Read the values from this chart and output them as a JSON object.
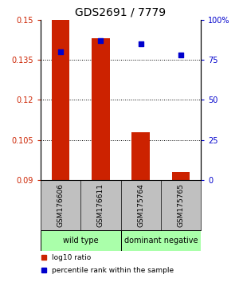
{
  "title": "GDS2691 / 7779",
  "samples": [
    "GSM176606",
    "GSM176611",
    "GSM175764",
    "GSM175765"
  ],
  "log10_ratio": [
    0.15,
    0.143,
    0.108,
    0.093
  ],
  "percentile_rank": [
    80,
    87,
    85,
    78
  ],
  "ylim_left": [
    0.09,
    0.15
  ],
  "ylim_right": [
    0,
    100
  ],
  "yticks_left": [
    0.09,
    0.105,
    0.12,
    0.135,
    0.15
  ],
  "yticks_right": [
    0,
    25,
    50,
    75,
    100
  ],
  "ytick_labels_left": [
    "0.09",
    "0.105",
    "0.12",
    "0.135",
    "0.15"
  ],
  "ytick_labels_right": [
    "0",
    "25",
    "50",
    "75",
    "100%"
  ],
  "bar_color": "#CC2200",
  "square_color": "#0000CC",
  "background_color": "#ffffff",
  "label_area_color": "#C0C0C0",
  "group_color": "#aaffaa"
}
